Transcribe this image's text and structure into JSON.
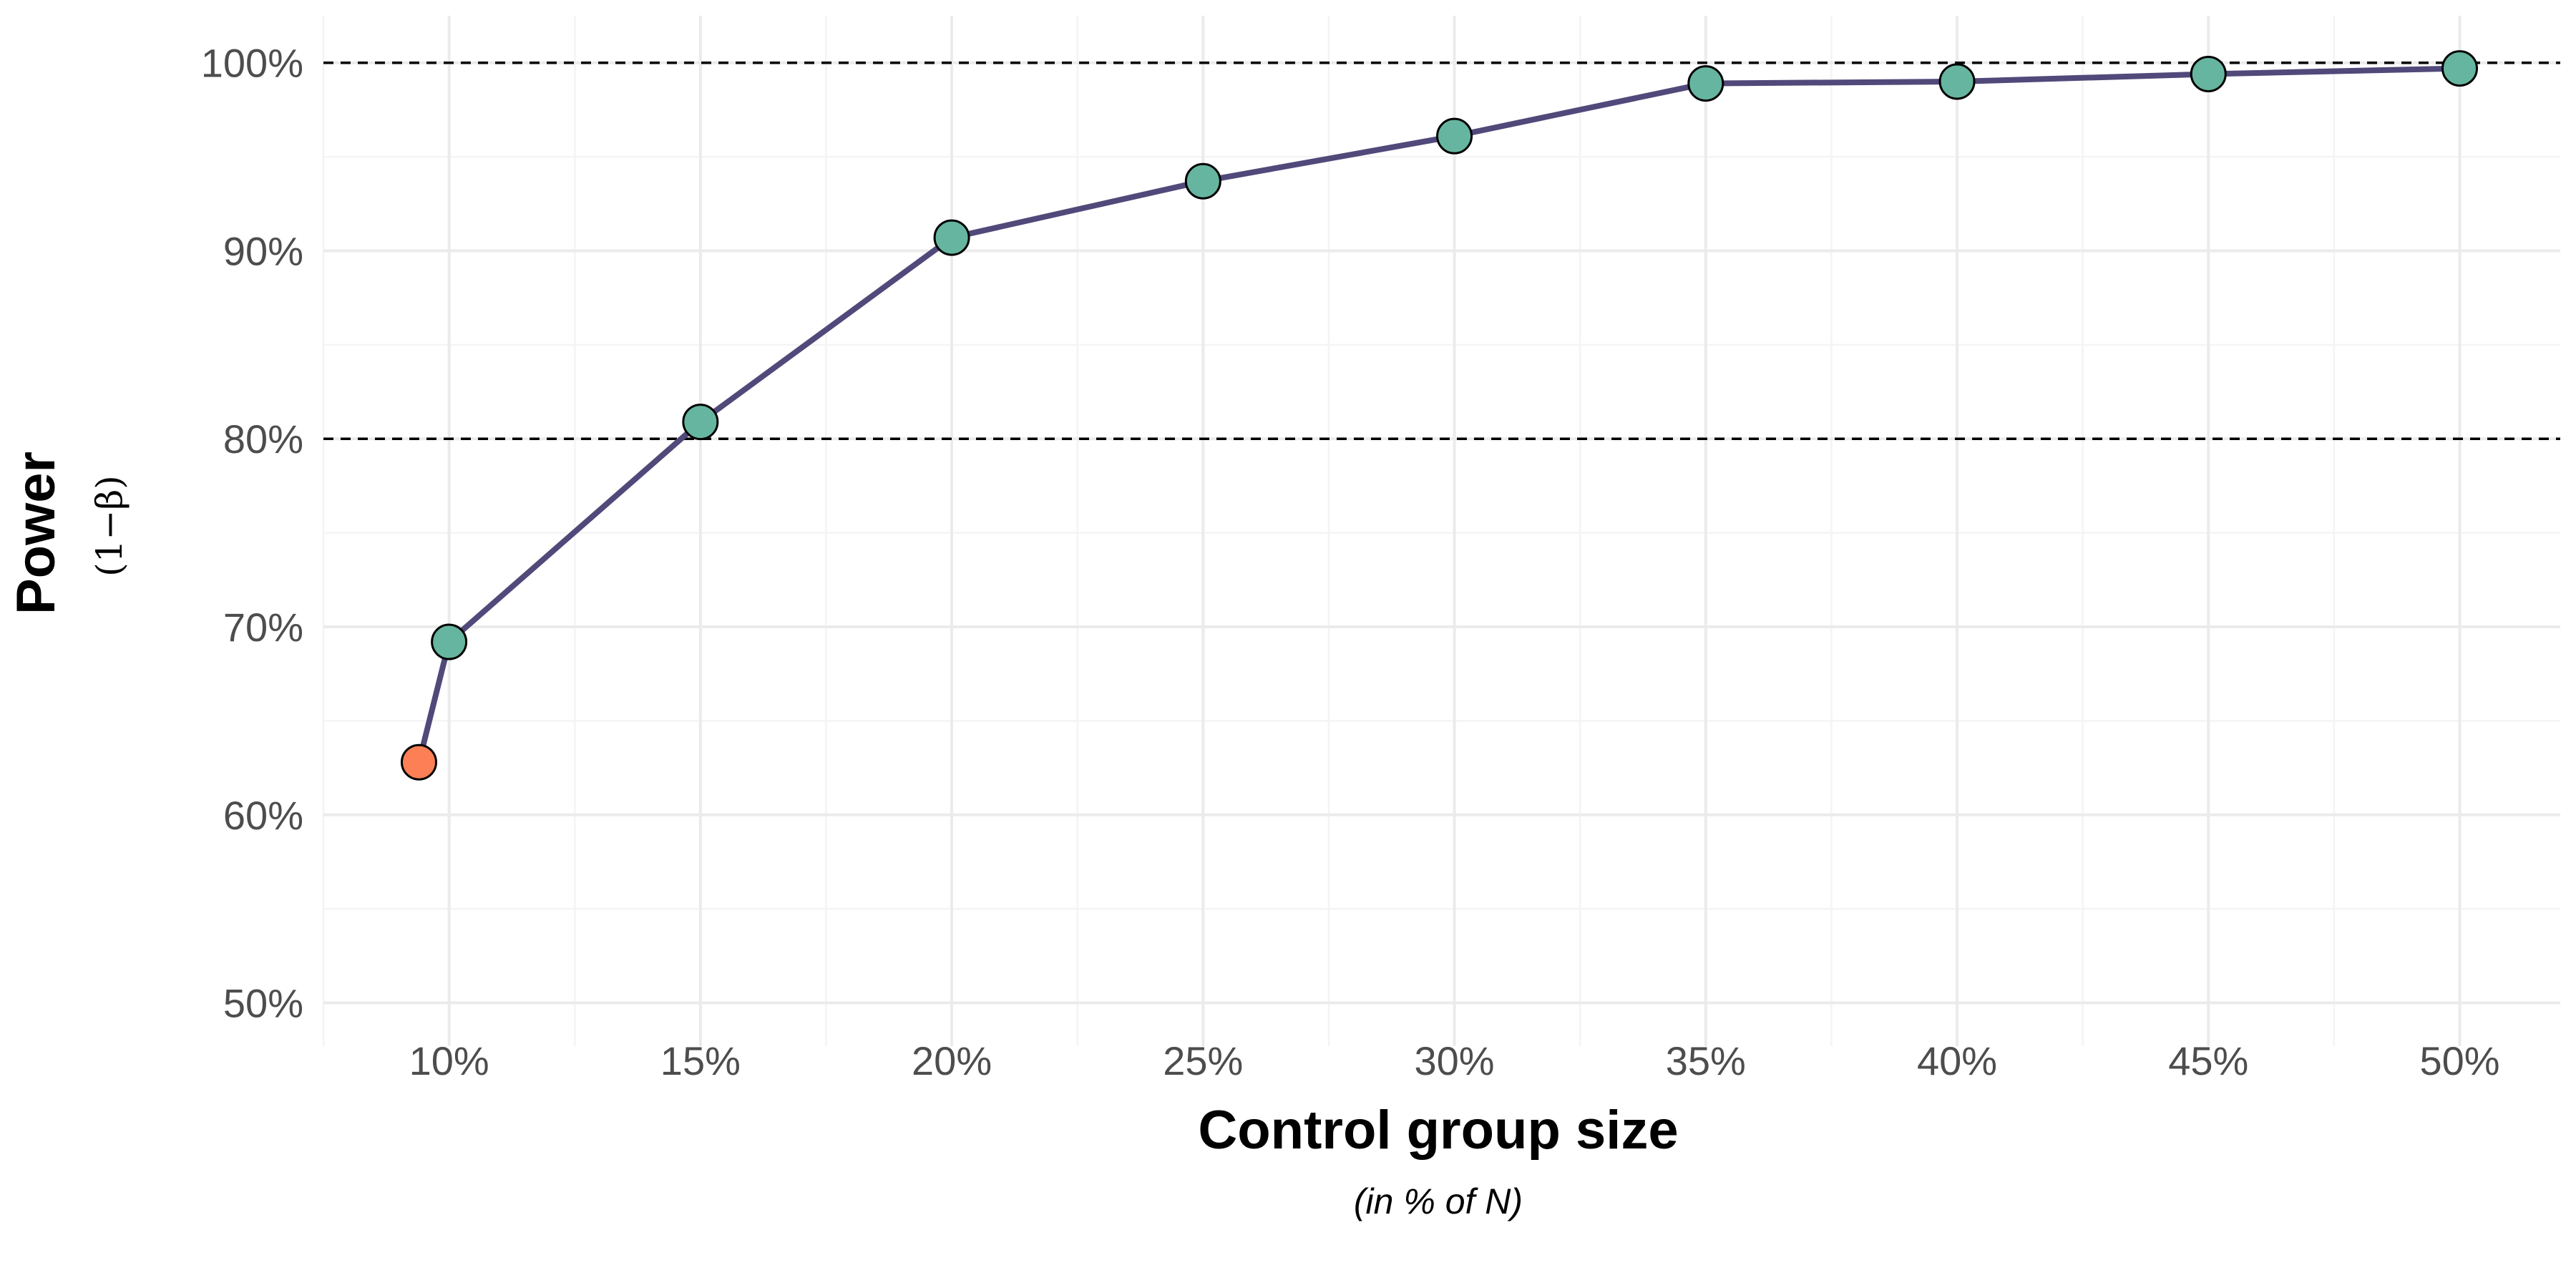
{
  "chart_data": {
    "type": "line",
    "x": [
      9.4,
      10,
      15,
      20,
      25,
      30,
      35,
      40,
      45,
      50
    ],
    "y": [
      62.8,
      69.2,
      80.9,
      90.7,
      93.7,
      96.1,
      98.9,
      99.0,
      99.4,
      99.7
    ],
    "point_highlight": [
      true,
      false,
      false,
      false,
      false,
      false,
      false,
      false,
      false,
      false
    ],
    "xlim": [
      7.5,
      52
    ],
    "ylim": [
      47.7,
      102.5
    ],
    "x_ticks": [
      10,
      15,
      20,
      25,
      30,
      35,
      40,
      45,
      50
    ],
    "x_tick_labels": [
      "10%",
      "15%",
      "20%",
      "25%",
      "30%",
      "35%",
      "40%",
      "45%",
      "50%"
    ],
    "y_ticks": [
      50,
      60,
      70,
      80,
      90,
      100
    ],
    "y_tick_labels": [
      "50%",
      "60%",
      "70%",
      "80%",
      "90%",
      "100%"
    ],
    "reference_lines": [
      80,
      100
    ],
    "xlabel": "Control group size",
    "xlabel_sub": "(in % of N)",
    "ylabel": "Power",
    "ylabel_sub": "(1−β)",
    "grid": true,
    "colors": {
      "line": "#51497a",
      "point": "#66b5a0",
      "point_highlight": "#fc7f55",
      "point_stroke": "#000000",
      "grid_major": "#ebebeb",
      "grid_minor": "#f4f4f4",
      "reference_line": "#000000"
    }
  }
}
